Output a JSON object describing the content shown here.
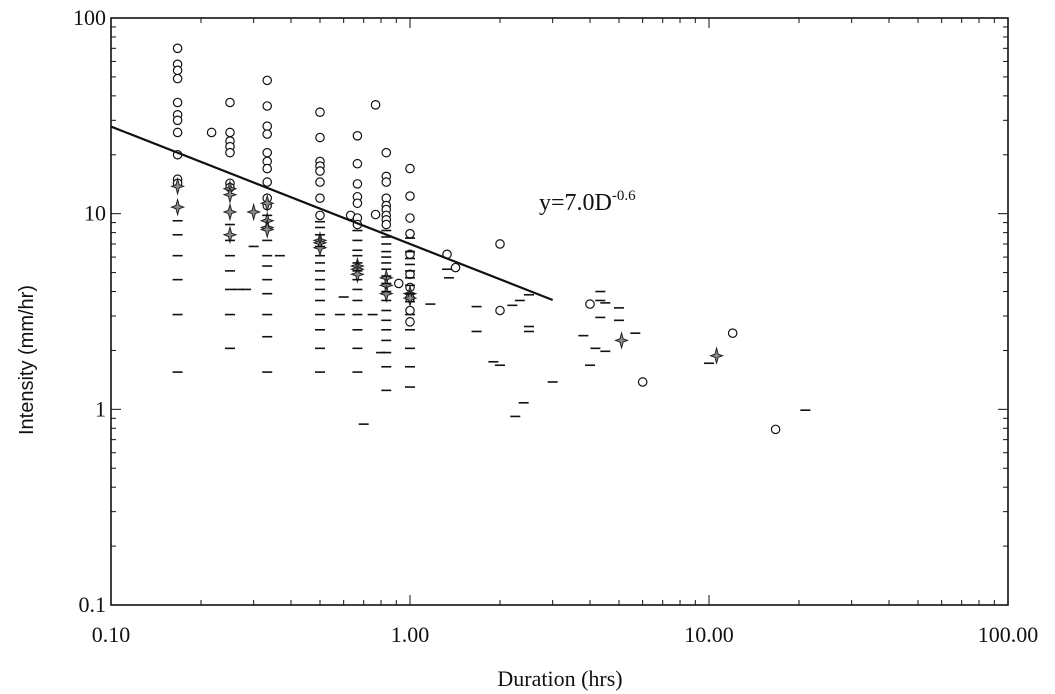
{
  "chart_data": {
    "type": "scatter",
    "title": "",
    "xlabel": "Duration (hrs)",
    "ylabel": "Intensity (mm/hr)",
    "x_scale": "log",
    "y_scale": "log",
    "xlim": [
      0.1,
      100
    ],
    "ylim": [
      0.1,
      100
    ],
    "x_ticks": [
      "0.10",
      "1.00",
      "10.00",
      "100.00"
    ],
    "y_ticks": [
      "0.1",
      "1",
      "10",
      "100"
    ],
    "grid": false,
    "annotation": {
      "base": "y=7.0D",
      "exponent": "-0.6"
    },
    "fit_line": {
      "coefficient": 7.0,
      "exponent": -0.6,
      "x_range": [
        0.1,
        3.0
      ]
    },
    "series": [
      {
        "marker": "circle",
        "points": [
          [
            0.167,
            70
          ],
          [
            0.167,
            58
          ],
          [
            0.167,
            54
          ],
          [
            0.167,
            49
          ],
          [
            0.167,
            37
          ],
          [
            0.167,
            32
          ],
          [
            0.167,
            30
          ],
          [
            0.167,
            26
          ],
          [
            0.167,
            20
          ],
          [
            0.167,
            15
          ],
          [
            0.167,
            14.3
          ],
          [
            0.217,
            26
          ],
          [
            0.25,
            37
          ],
          [
            0.25,
            26
          ],
          [
            0.25,
            23.5
          ],
          [
            0.25,
            22
          ],
          [
            0.25,
            20.5
          ],
          [
            0.25,
            14.3
          ],
          [
            0.25,
            13.6
          ],
          [
            0.333,
            48
          ],
          [
            0.333,
            35.5
          ],
          [
            0.333,
            28
          ],
          [
            0.333,
            25.5
          ],
          [
            0.333,
            20.5
          ],
          [
            0.333,
            18.5
          ],
          [
            0.333,
            17
          ],
          [
            0.333,
            14.5
          ],
          [
            0.333,
            12
          ],
          [
            0.333,
            11
          ],
          [
            0.5,
            33
          ],
          [
            0.5,
            24.5
          ],
          [
            0.5,
            18.5
          ],
          [
            0.5,
            17.5
          ],
          [
            0.5,
            16.5
          ],
          [
            0.5,
            14.5
          ],
          [
            0.5,
            12
          ],
          [
            0.5,
            9.8
          ],
          [
            0.633,
            9.8
          ],
          [
            0.667,
            25
          ],
          [
            0.667,
            18
          ],
          [
            0.667,
            14.2
          ],
          [
            0.667,
            12.2
          ],
          [
            0.667,
            11.3
          ],
          [
            0.667,
            9.5
          ],
          [
            0.667,
            8.8
          ],
          [
            0.767,
            36
          ],
          [
            0.767,
            9.9
          ],
          [
            0.833,
            20.5
          ],
          [
            0.833,
            15.5
          ],
          [
            0.833,
            14.5
          ],
          [
            0.833,
            12
          ],
          [
            0.833,
            11
          ],
          [
            0.833,
            10.5
          ],
          [
            0.833,
            9.8
          ],
          [
            0.833,
            9.3
          ],
          [
            0.833,
            8.8
          ],
          [
            0.917,
            4.4
          ],
          [
            1.0,
            17
          ],
          [
            1.0,
            12.3
          ],
          [
            1.0,
            9.5
          ],
          [
            1.0,
            7.9
          ],
          [
            1.0,
            6.2
          ],
          [
            1.0,
            4.9
          ],
          [
            1.0,
            4.2
          ],
          [
            1.0,
            3.7
          ],
          [
            1.0,
            3.2
          ],
          [
            1.0,
            2.8
          ],
          [
            1.33,
            6.2
          ],
          [
            1.42,
            5.3
          ],
          [
            2.0,
            7.0
          ],
          [
            2.0,
            3.2
          ],
          [
            4.0,
            3.45
          ],
          [
            6.0,
            1.38
          ],
          [
            12.0,
            2.45
          ],
          [
            16.7,
            0.79
          ]
        ]
      },
      {
        "marker": "diamond",
        "points": [
          [
            0.167,
            13.8
          ],
          [
            0.167,
            10.8
          ],
          [
            0.25,
            13.4
          ],
          [
            0.25,
            12.5
          ],
          [
            0.25,
            10.2
          ],
          [
            0.25,
            7.8
          ],
          [
            0.3,
            10.2
          ],
          [
            0.333,
            11.3
          ],
          [
            0.333,
            9.2
          ],
          [
            0.333,
            8.5
          ],
          [
            0.333,
            8.3
          ],
          [
            0.5,
            7.3
          ],
          [
            0.5,
            7.1
          ],
          [
            0.5,
            6.7
          ],
          [
            0.667,
            5.4
          ],
          [
            0.667,
            5.2
          ],
          [
            0.667,
            4.9
          ],
          [
            0.833,
            4.7
          ],
          [
            0.833,
            4.3
          ],
          [
            0.833,
            3.9
          ],
          [
            1.0,
            3.9
          ],
          [
            1.0,
            3.7
          ],
          [
            5.1,
            2.25
          ],
          [
            10.6,
            1.88
          ]
        ]
      },
      {
        "marker": "dash",
        "points": [
          [
            0.167,
            9.2
          ],
          [
            0.167,
            7.8
          ],
          [
            0.167,
            6.1
          ],
          [
            0.167,
            4.6
          ],
          [
            0.167,
            3.05
          ],
          [
            0.167,
            1.55
          ],
          [
            0.25,
            8.8
          ],
          [
            0.25,
            7.3
          ],
          [
            0.25,
            6.1
          ],
          [
            0.25,
            5.1
          ],
          [
            0.25,
            4.1
          ],
          [
            0.25,
            3.05
          ],
          [
            0.25,
            2.05
          ],
          [
            0.267,
            4.1
          ],
          [
            0.283,
            4.1
          ],
          [
            0.3,
            6.8
          ],
          [
            0.367,
            6.1
          ],
          [
            0.333,
            9.8
          ],
          [
            0.333,
            7.3
          ],
          [
            0.333,
            6.1
          ],
          [
            0.333,
            5.4
          ],
          [
            0.333,
            4.6
          ],
          [
            0.333,
            3.9
          ],
          [
            0.333,
            3.05
          ],
          [
            0.333,
            2.35
          ],
          [
            0.333,
            1.55
          ],
          [
            0.5,
            9.1
          ],
          [
            0.5,
            8.5
          ],
          [
            0.5,
            7.8
          ],
          [
            0.5,
            6.8
          ],
          [
            0.5,
            6.1
          ],
          [
            0.5,
            5.6
          ],
          [
            0.5,
            5.1
          ],
          [
            0.5,
            4.6
          ],
          [
            0.5,
            4.1
          ],
          [
            0.5,
            3.6
          ],
          [
            0.5,
            3.05
          ],
          [
            0.5,
            2.55
          ],
          [
            0.5,
            2.05
          ],
          [
            0.5,
            1.55
          ],
          [
            0.583,
            3.05
          ],
          [
            0.6,
            3.75
          ],
          [
            0.667,
            8.2
          ],
          [
            0.667,
            7.3
          ],
          [
            0.667,
            6.5
          ],
          [
            0.667,
            6.1
          ],
          [
            0.667,
            5.6
          ],
          [
            0.667,
            5.1
          ],
          [
            0.667,
            4.6
          ],
          [
            0.667,
            4.1
          ],
          [
            0.667,
            3.6
          ],
          [
            0.667,
            3.05
          ],
          [
            0.667,
            2.55
          ],
          [
            0.667,
            2.05
          ],
          [
            0.667,
            1.55
          ],
          [
            0.7,
            0.84
          ],
          [
            0.75,
            3.05
          ],
          [
            0.8,
            1.95
          ],
          [
            0.833,
            8.2
          ],
          [
            0.833,
            7.6
          ],
          [
            0.833,
            7.0
          ],
          [
            0.833,
            6.4
          ],
          [
            0.833,
            6.0
          ],
          [
            0.833,
            5.6
          ],
          [
            0.833,
            5.2
          ],
          [
            0.833,
            4.8
          ],
          [
            0.833,
            4.4
          ],
          [
            0.833,
            4.0
          ],
          [
            0.833,
            3.6
          ],
          [
            0.833,
            3.2
          ],
          [
            0.833,
            2.85
          ],
          [
            0.833,
            2.55
          ],
          [
            0.833,
            2.25
          ],
          [
            0.833,
            1.95
          ],
          [
            0.833,
            1.65
          ],
          [
            0.833,
            1.25
          ],
          [
            1.0,
            7.5
          ],
          [
            1.0,
            6.4
          ],
          [
            1.0,
            5.9
          ],
          [
            1.0,
            5.5
          ],
          [
            1.0,
            5.1
          ],
          [
            1.0,
            4.7
          ],
          [
            1.0,
            4.3
          ],
          [
            1.0,
            3.9
          ],
          [
            1.0,
            3.55
          ],
          [
            1.0,
            3.05
          ],
          [
            1.0,
            2.55
          ],
          [
            1.0,
            2.05
          ],
          [
            1.0,
            1.65
          ],
          [
            1.0,
            1.3
          ],
          [
            1.17,
            3.45
          ],
          [
            1.33,
            5.2
          ],
          [
            1.35,
            4.7
          ],
          [
            1.67,
            3.35
          ],
          [
            1.67,
            2.5
          ],
          [
            1.9,
            1.75
          ],
          [
            2.0,
            1.68
          ],
          [
            2.2,
            3.4
          ],
          [
            2.25,
            0.92
          ],
          [
            2.33,
            3.6
          ],
          [
            2.4,
            1.08
          ],
          [
            2.5,
            3.85
          ],
          [
            2.5,
            2.65
          ],
          [
            2.5,
            2.5
          ],
          [
            3.0,
            1.38
          ],
          [
            3.8,
            2.38
          ],
          [
            4.0,
            1.68
          ],
          [
            4.33,
            4.0
          ],
          [
            4.33,
            3.6
          ],
          [
            4.33,
            2.95
          ],
          [
            4.17,
            2.05
          ],
          [
            4.5,
            1.98
          ],
          [
            4.5,
            3.5
          ],
          [
            5.0,
            3.3
          ],
          [
            5.0,
            2.85
          ],
          [
            5.67,
            2.45
          ],
          [
            10.0,
            1.72
          ],
          [
            21.0,
            0.99
          ]
        ]
      }
    ]
  }
}
